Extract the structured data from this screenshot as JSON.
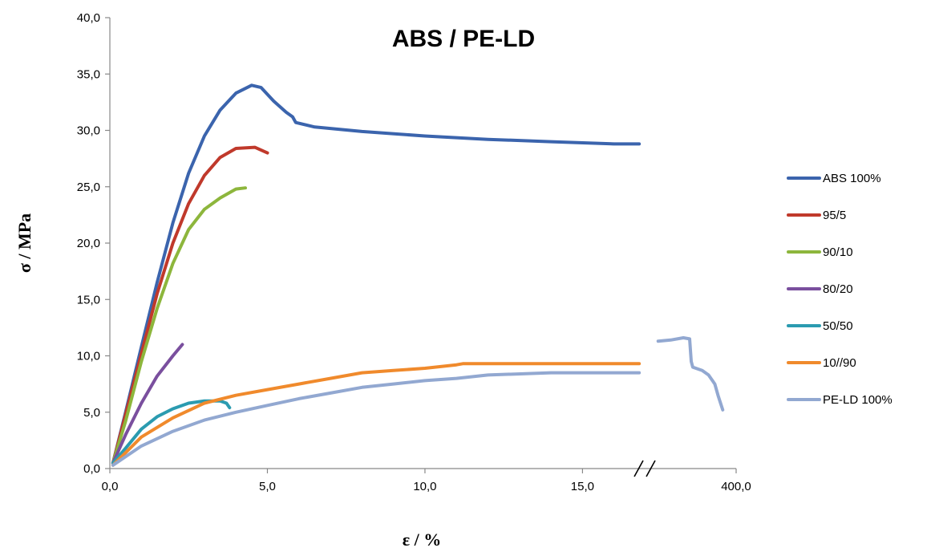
{
  "chart_data": {
    "type": "line",
    "title": "ABS / PE-LD",
    "xlabel": "ε / %",
    "ylabel": "σ / MPa",
    "xlim": [
      0,
      17
    ],
    "ylim": [
      0,
      40
    ],
    "x_ticks": [
      "0,0",
      "5,0",
      "10,0",
      "15,0",
      "400,0"
    ],
    "y_ticks": [
      "0,0",
      "5,0",
      "10,0",
      "15,0",
      "20,0",
      "25,0",
      "30,0",
      "35,0",
      "40,0"
    ],
    "axis_break": true,
    "grid": false,
    "legend_position": "right",
    "series": [
      {
        "name": "ABS 100%",
        "color": "#3b64ad",
        "points": [
          [
            0.1,
            0.5
          ],
          [
            0.5,
            5
          ],
          [
            1.0,
            10.8
          ],
          [
            1.5,
            16.5
          ],
          [
            2.0,
            21.8
          ],
          [
            2.5,
            26.2
          ],
          [
            3.0,
            29.5
          ],
          [
            3.5,
            31.8
          ],
          [
            4.0,
            33.3
          ],
          [
            4.5,
            34.0
          ],
          [
            4.8,
            33.8
          ],
          [
            5.2,
            32.6
          ],
          [
            5.6,
            31.6
          ],
          [
            5.8,
            31.2
          ],
          [
            5.9,
            30.7
          ],
          [
            6.5,
            30.3
          ],
          [
            8.0,
            29.9
          ],
          [
            10.0,
            29.5
          ],
          [
            12.0,
            29.2
          ],
          [
            14.0,
            29.0
          ],
          [
            16.0,
            28.8
          ],
          [
            16.8,
            28.8
          ]
        ]
      },
      {
        "name": "95/5",
        "color": "#c0392b",
        "points": [
          [
            0.1,
            0.5
          ],
          [
            0.5,
            4.8
          ],
          [
            1.0,
            10.2
          ],
          [
            1.5,
            15.5
          ],
          [
            2.0,
            20.0
          ],
          [
            2.5,
            23.5
          ],
          [
            3.0,
            26.0
          ],
          [
            3.5,
            27.6
          ],
          [
            4.0,
            28.4
          ],
          [
            4.6,
            28.5
          ],
          [
            5.0,
            28.0
          ]
        ]
      },
      {
        "name": "90/10",
        "color": "#8db63c",
        "points": [
          [
            0.1,
            0.5
          ],
          [
            0.5,
            4.2
          ],
          [
            1.0,
            9.5
          ],
          [
            1.5,
            14.2
          ],
          [
            2.0,
            18.2
          ],
          [
            2.5,
            21.2
          ],
          [
            3.0,
            23.0
          ],
          [
            3.5,
            24.0
          ],
          [
            4.0,
            24.8
          ],
          [
            4.3,
            24.9
          ]
        ]
      },
      {
        "name": "80/20",
        "color": "#7a4f9e",
        "points": [
          [
            0.1,
            0.5
          ],
          [
            0.5,
            3.0
          ],
          [
            1.0,
            5.8
          ],
          [
            1.5,
            8.2
          ],
          [
            2.0,
            10.0
          ],
          [
            2.3,
            11.0
          ]
        ]
      },
      {
        "name": "50/50",
        "color": "#2b9bb0",
        "points": [
          [
            0.1,
            0.5
          ],
          [
            0.5,
            1.8
          ],
          [
            1.0,
            3.5
          ],
          [
            1.5,
            4.6
          ],
          [
            2.0,
            5.3
          ],
          [
            2.5,
            5.8
          ],
          [
            3.0,
            6.0
          ],
          [
            3.5,
            6.0
          ],
          [
            3.7,
            5.8
          ],
          [
            3.8,
            5.4
          ]
        ]
      },
      {
        "name": "10//90",
        "color": "#f08a2c",
        "points": [
          [
            0.1,
            0.3
          ],
          [
            1.0,
            2.8
          ],
          [
            2.0,
            4.5
          ],
          [
            3.0,
            5.8
          ],
          [
            4.0,
            6.5
          ],
          [
            5.0,
            7.0
          ],
          [
            6.0,
            7.5
          ],
          [
            7.0,
            8.0
          ],
          [
            8.0,
            8.5
          ],
          [
            9.0,
            8.7
          ],
          [
            10.0,
            8.9
          ],
          [
            11.0,
            9.2
          ],
          [
            11.2,
            9.3
          ],
          [
            12.0,
            9.3
          ],
          [
            14.0,
            9.3
          ],
          [
            16.0,
            9.3
          ],
          [
            16.8,
            9.3
          ]
        ]
      },
      {
        "name": "PE-LD 100%",
        "color": "#92a8d1",
        "points": [
          [
            0.1,
            0.3
          ],
          [
            1.0,
            2.0
          ],
          [
            2.0,
            3.3
          ],
          [
            3.0,
            4.3
          ],
          [
            4.0,
            5.0
          ],
          [
            5.0,
            5.6
          ],
          [
            6.0,
            6.2
          ],
          [
            7.0,
            6.7
          ],
          [
            8.0,
            7.2
          ],
          [
            9.0,
            7.5
          ],
          [
            10.0,
            7.8
          ],
          [
            11.0,
            8.0
          ],
          [
            12.0,
            8.3
          ],
          [
            14.0,
            8.5
          ],
          [
            16.0,
            8.5
          ],
          [
            16.8,
            8.5
          ]
        ]
      }
    ],
    "extended_segment": {
      "series": "PE-LD 100%",
      "color": "#92a8d1",
      "points": [
        [
          17.4,
          11.3
        ],
        [
          17.8,
          11.4
        ],
        [
          18.2,
          11.6
        ],
        [
          18.4,
          11.5
        ],
        [
          18.45,
          9.5
        ],
        [
          18.5,
          9.0
        ],
        [
          18.8,
          8.7
        ],
        [
          19.0,
          8.3
        ],
        [
          19.2,
          7.5
        ],
        [
          19.3,
          6.5
        ],
        [
          19.45,
          5.2
        ]
      ]
    }
  }
}
